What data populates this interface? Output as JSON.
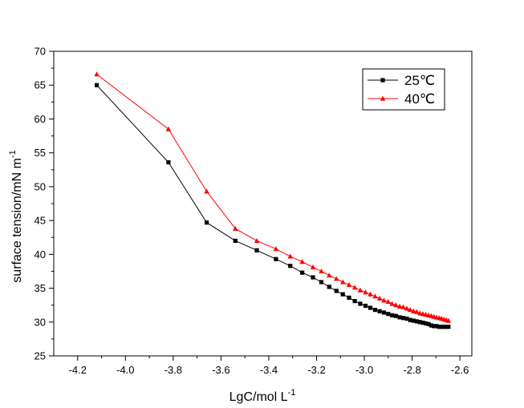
{
  "chart_data": {
    "type": "line",
    "xlabel": "LgC/mol L",
    "xlabel_sup": "-1",
    "ylabel": "surface tension/mN m",
    "ylabel_sup": "-1",
    "xlim": [
      -4.3,
      -2.55
    ],
    "ylim": [
      25,
      70
    ],
    "xticks": [
      -4.2,
      -4.0,
      -3.8,
      -3.6,
      -3.4,
      -3.2,
      -3.0,
      -2.8,
      -2.6
    ],
    "xtick_labels": [
      "-4.2",
      "-4.0",
      "-3.8",
      "-3.6",
      "-3.4",
      "-3.2",
      "-3.0",
      "-2.8",
      "-2.6"
    ],
    "yticks": [
      25,
      30,
      35,
      40,
      45,
      50,
      55,
      60,
      65,
      70
    ],
    "ytick_labels": [
      "25",
      "30",
      "35",
      "40",
      "45",
      "50",
      "55",
      "60",
      "65",
      "70"
    ],
    "grid": false,
    "legend_position": "top-right",
    "series": [
      {
        "name": "25℃",
        "color": "#000000",
        "marker": "square",
        "x": [
          -4.12,
          -3.82,
          -3.66,
          -3.54,
          -3.45,
          -3.37,
          -3.31,
          -3.26,
          -3.215,
          -3.18,
          -3.147,
          -3.117,
          -3.09,
          -3.064,
          -3.04,
          -3.017,
          -2.995,
          -2.975,
          -2.955,
          -2.936,
          -2.918,
          -2.9,
          -2.884,
          -2.868,
          -2.852,
          -2.837,
          -2.822,
          -2.808,
          -2.794,
          -2.781,
          -2.768,
          -2.755,
          -2.743,
          -2.731,
          -2.72,
          -2.709,
          -2.698,
          -2.687,
          -2.677,
          -2.667,
          -2.657,
          -2.648
        ],
        "y": [
          65.0,
          53.6,
          44.7,
          42.0,
          40.6,
          39.3,
          38.3,
          37.3,
          36.6,
          35.9,
          35.2,
          34.6,
          34.1,
          33.6,
          33.1,
          32.7,
          32.4,
          32.1,
          31.8,
          31.6,
          31.4,
          31.2,
          31.0,
          30.9,
          30.7,
          30.6,
          30.5,
          30.3,
          30.2,
          30.1,
          30.0,
          29.9,
          29.8,
          29.7,
          29.5,
          29.4,
          29.4,
          29.3,
          29.3,
          29.3,
          29.3,
          29.3
        ]
      },
      {
        "name": "40℃",
        "color": "#ff0000",
        "marker": "triangle",
        "x": [
          -4.12,
          -3.82,
          -3.66,
          -3.54,
          -3.45,
          -3.37,
          -3.31,
          -3.26,
          -3.215,
          -3.18,
          -3.147,
          -3.117,
          -3.09,
          -3.064,
          -3.04,
          -3.017,
          -2.995,
          -2.975,
          -2.955,
          -2.936,
          -2.918,
          -2.9,
          -2.884,
          -2.868,
          -2.852,
          -2.837,
          -2.822,
          -2.808,
          -2.794,
          -2.781,
          -2.768,
          -2.755,
          -2.743,
          -2.731,
          -2.72,
          -2.709,
          -2.698,
          -2.687,
          -2.677,
          -2.667,
          -2.657,
          -2.648
        ],
        "y": [
          66.6,
          58.5,
          49.3,
          43.8,
          42.0,
          40.8,
          39.7,
          38.9,
          38.1,
          37.5,
          36.9,
          36.4,
          35.9,
          35.5,
          35.1,
          34.7,
          34.4,
          34.1,
          33.8,
          33.5,
          33.2,
          33.0,
          32.7,
          32.5,
          32.3,
          32.2,
          32.0,
          31.8,
          31.6,
          31.5,
          31.3,
          31.2,
          31.1,
          31.0,
          30.9,
          30.8,
          30.7,
          30.6,
          30.5,
          30.4,
          30.3,
          30.2
        ]
      }
    ]
  }
}
